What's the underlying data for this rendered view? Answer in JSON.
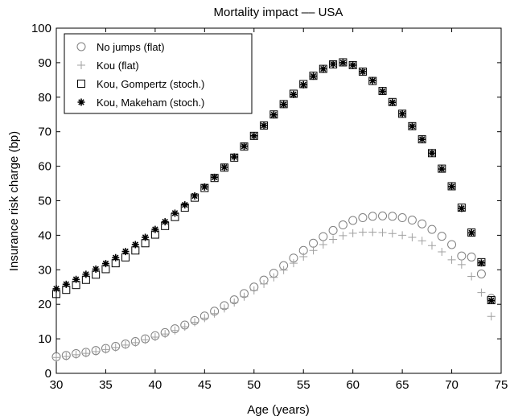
{
  "chart_data": {
    "type": "scatter",
    "title": "Mortality impact –– USA",
    "xlabel": "Age (years)",
    "ylabel": "Insurance risk charge (bp)",
    "xlim": [
      30,
      75
    ],
    "ylim": [
      0,
      100
    ],
    "xticks": [
      30,
      35,
      40,
      45,
      50,
      55,
      60,
      65,
      70,
      75
    ],
    "yticks": [
      0,
      10,
      20,
      30,
      40,
      50,
      60,
      70,
      80,
      90,
      100
    ],
    "grid": false,
    "legend_position": "top-left",
    "x": [
      30,
      31,
      32,
      33,
      34,
      35,
      36,
      37,
      38,
      39,
      40,
      41,
      42,
      43,
      44,
      45,
      46,
      47,
      48,
      49,
      50,
      51,
      52,
      53,
      54,
      55,
      56,
      57,
      58,
      59,
      60,
      61,
      62,
      63,
      64,
      65,
      66,
      67,
      68,
      69,
      70,
      71,
      72,
      73,
      74
    ],
    "series": [
      {
        "name": "No jumps (flat)",
        "marker": "circle",
        "color": "#808080",
        "values": [
          4.8,
          5.2,
          5.7,
          6.1,
          6.6,
          7.2,
          7.8,
          8.5,
          9.2,
          10.0,
          10.9,
          11.8,
          12.9,
          14.0,
          15.3,
          16.6,
          18.0,
          19.6,
          21.3,
          23.1,
          25.0,
          27.0,
          29.0,
          31.2,
          33.4,
          35.6,
          37.7,
          39.6,
          41.4,
          43.0,
          44.3,
          45.1,
          45.5,
          45.6,
          45.5,
          45.1,
          44.4,
          43.3,
          41.7,
          39.7,
          37.3,
          34.0,
          33.7,
          28.8,
          21.7
        ]
      },
      {
        "name": "Kou (flat)",
        "marker": "plus",
        "color": "#a0a0a0",
        "values": [
          4.6,
          4.9,
          5.4,
          5.8,
          6.3,
          6.9,
          7.5,
          8.2,
          8.9,
          9.7,
          10.5,
          11.4,
          12.4,
          13.5,
          14.8,
          16.0,
          17.3,
          18.8,
          20.5,
          22.2,
          24.0,
          25.9,
          27.8,
          29.9,
          31.9,
          33.8,
          35.6,
          37.3,
          38.8,
          39.9,
          40.6,
          40.9,
          40.9,
          40.8,
          40.5,
          40.0,
          39.4,
          38.4,
          37.0,
          35.2,
          32.9,
          31.5,
          28.1,
          23.4,
          16.5
        ]
      },
      {
        "name": "Kou, Gompertz (stoch.)",
        "marker": "square",
        "color": "#000000",
        "values": [
          23.0,
          24.2,
          25.6,
          27.1,
          28.6,
          30.2,
          31.9,
          33.6,
          35.6,
          37.7,
          40.2,
          42.7,
          45.3,
          48.0,
          50.9,
          53.7,
          56.6,
          59.6,
          62.5,
          65.7,
          68.8,
          71.8,
          75.0,
          78.0,
          81.0,
          83.8,
          86.2,
          88.2,
          89.5,
          90.1,
          89.3,
          87.4,
          84.7,
          81.8,
          78.6,
          75.2,
          71.6,
          67.8,
          63.8,
          59.3,
          54.2,
          48.0,
          40.8,
          32.2,
          21.2
        ]
      },
      {
        "name": "Kou, Makeham (stoch.)",
        "marker": "asterisk",
        "color": "#000000",
        "values": [
          24.5,
          25.8,
          27.2,
          28.7,
          30.2,
          31.8,
          33.5,
          35.3,
          37.3,
          39.4,
          41.7,
          43.9,
          46.4,
          48.8,
          51.4,
          54.0,
          56.8,
          59.7,
          62.7,
          65.8,
          68.8,
          71.8,
          74.9,
          77.9,
          80.8,
          83.6,
          86.1,
          88.2,
          89.6,
          90.0,
          89.3,
          87.4,
          84.8,
          81.7,
          78.5,
          75.2,
          71.6,
          67.8,
          63.8,
          59.2,
          54.1,
          47.8,
          40.7,
          32.0,
          21.1
        ]
      }
    ]
  }
}
